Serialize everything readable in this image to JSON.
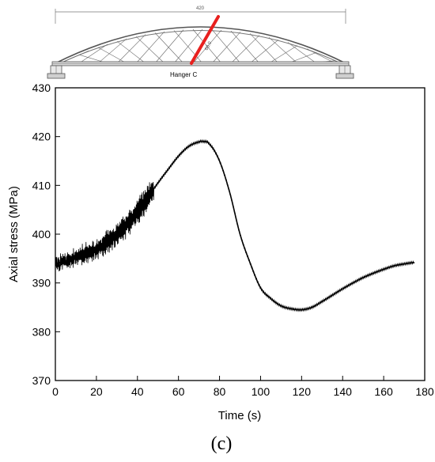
{
  "figure": {
    "panel_label": "(c)",
    "bridge": {
      "span_label": "420",
      "hanger_label": "Hanger C",
      "hanger_length_label": "60.0",
      "hanger_color": "#e8201e"
    }
  },
  "chart_data": {
    "type": "line",
    "title": "",
    "xlabel": "Time (s)",
    "ylabel": "Axial stress (MPa)",
    "xlim": [
      0,
      180
    ],
    "ylim": [
      370,
      430
    ],
    "xticks": [
      0,
      20,
      40,
      60,
      80,
      100,
      120,
      140,
      160,
      180
    ],
    "yticks": [
      370,
      380,
      390,
      400,
      410,
      420,
      430
    ],
    "grid": false,
    "legend": "none",
    "line_color": "#000000",
    "series": [
      {
        "x": [
          0,
          5,
          10,
          15,
          20,
          25,
          30,
          35,
          40,
          45,
          50,
          55,
          60,
          65,
          70,
          72,
          75,
          80,
          85,
          90,
          95,
          100,
          105,
          110,
          115,
          120,
          125,
          130,
          135,
          140,
          145,
          150,
          155,
          160,
          165,
          170,
          175
        ],
        "y": [
          394,
          394.5,
          395.3,
          396,
          397,
          398.2,
          400,
          402,
          404.5,
          407.5,
          410.5,
          413.3,
          416,
          418,
          418.9,
          419,
          418.5,
          415,
          408.5,
          400,
          394,
          389,
          386.8,
          385.3,
          384.7,
          384.5,
          385,
          386.2,
          387.5,
          388.8,
          390,
          391.1,
          392,
          392.8,
          393.5,
          393.9,
          394.2
        ]
      }
    ]
  }
}
